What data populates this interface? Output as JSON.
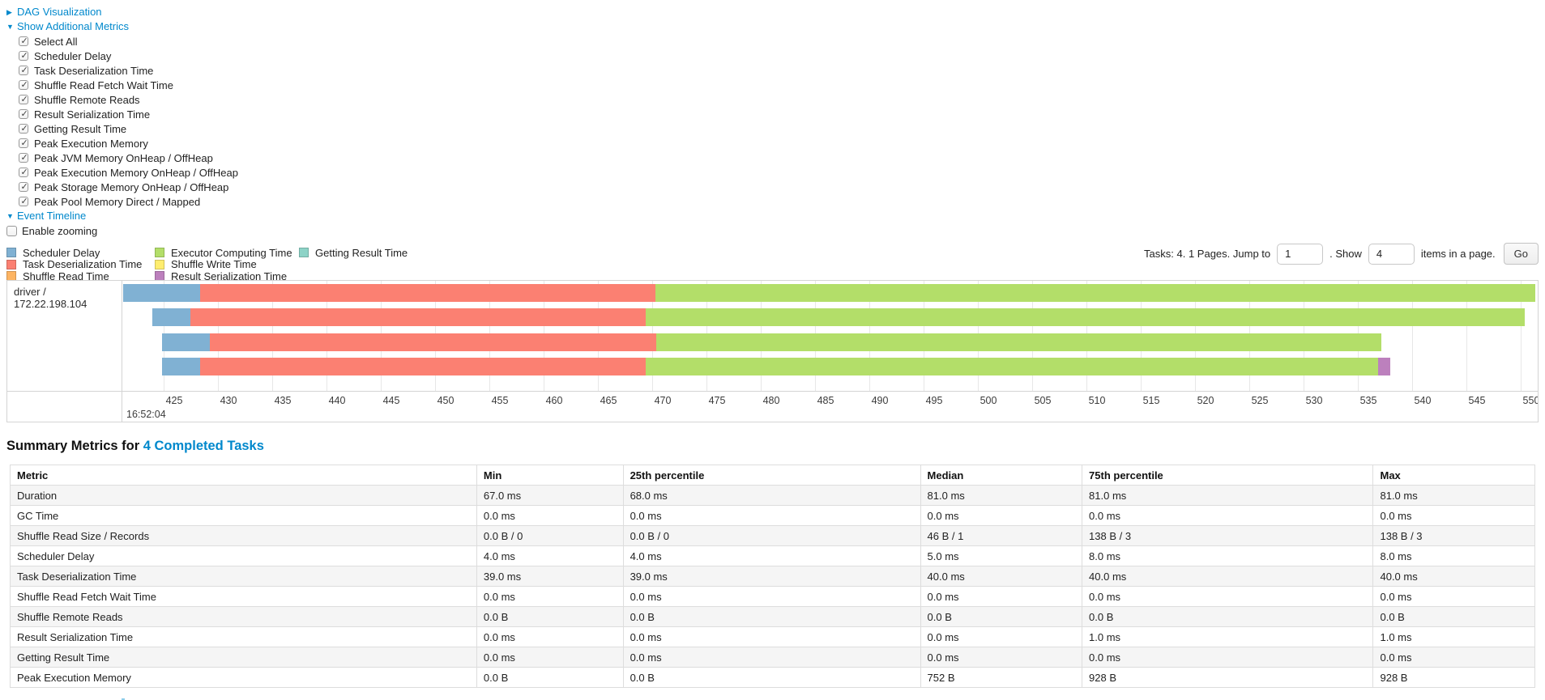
{
  "controls": {
    "dag": {
      "caret": "▶",
      "label": "DAG Visualization"
    },
    "metrics_panel": {
      "caret": "▼",
      "label": "Show Additional Metrics",
      "items": [
        "Select All",
        "Scheduler Delay",
        "Task Deserialization Time",
        "Shuffle Read Fetch Wait Time",
        "Shuffle Remote Reads",
        "Result Serialization Time",
        "Getting Result Time",
        "Peak Execution Memory",
        "Peak JVM Memory OnHeap / OffHeap",
        "Peak Execution Memory OnHeap / OffHeap",
        "Peak Storage Memory OnHeap / OffHeap",
        "Peak Pool Memory Direct / Mapped"
      ]
    },
    "event_timeline": {
      "caret": "▼",
      "label": "Event Timeline"
    },
    "enable_zooming_label": "Enable zooming"
  },
  "legend": {
    "colors": {
      "scheduler_delay": "#80B1D3",
      "task_deserialization": "#FB8072",
      "shuffle_read": "#FDB462",
      "executor_computing": "#B3DE69",
      "shuffle_write": "#FFED6F",
      "result_serialization": "#BC80BD",
      "getting_result": "#8DD3C7"
    },
    "columns": [
      [
        {
          "key": "scheduler_delay",
          "label": "Scheduler Delay"
        },
        {
          "key": "task_deserialization",
          "label": "Task Deserialization Time"
        },
        {
          "key": "shuffle_read",
          "label": "Shuffle Read Time"
        }
      ],
      [
        {
          "key": "executor_computing",
          "label": "Executor Computing Time"
        },
        {
          "key": "shuffle_write",
          "label": "Shuffle Write Time"
        },
        {
          "key": "result_serialization",
          "label": "Result Serialization Time"
        }
      ],
      [
        {
          "key": "getting_result",
          "label": "Getting Result Time"
        }
      ]
    ]
  },
  "pagination": {
    "summary": "Tasks: 4. 1 Pages. Jump to",
    "jump_value": "1",
    "mid": ". Show",
    "show_value": "4",
    "suffix": "items in a page.",
    "go_label": "Go"
  },
  "timeline": {
    "executor_label": "driver / 172.22.198.104",
    "axis": {
      "min": 421.3,
      "max": 551.6,
      "tick_step": 5,
      "ticks": [
        425,
        430,
        435,
        440,
        445,
        450,
        455,
        460,
        465,
        470,
        475,
        480,
        485,
        490,
        495,
        500,
        505,
        510,
        515,
        520,
        525,
        530,
        535,
        540,
        545,
        550
      ],
      "start_time_label": "16:52:04"
    },
    "tasks": [
      {
        "segments": [
          {
            "type": "scheduler_delay",
            "start": 421.3,
            "end": 428.4
          },
          {
            "type": "task_deserialization",
            "start": 428.4,
            "end": 470.3
          },
          {
            "type": "executor_computing",
            "start": 470.3,
            "end": 551.4
          }
        ]
      },
      {
        "segments": [
          {
            "type": "scheduler_delay",
            "start": 424.0,
            "end": 427.5
          },
          {
            "type": "task_deserialization",
            "start": 427.5,
            "end": 469.4
          },
          {
            "type": "executor_computing",
            "start": 469.4,
            "end": 550.4
          }
        ]
      },
      {
        "segments": [
          {
            "type": "scheduler_delay",
            "start": 424.9,
            "end": 429.3
          },
          {
            "type": "task_deserialization",
            "start": 429.3,
            "end": 470.4
          },
          {
            "type": "executor_computing",
            "start": 470.4,
            "end": 537.2
          }
        ]
      },
      {
        "segments": [
          {
            "type": "scheduler_delay",
            "start": 424.9,
            "end": 428.4
          },
          {
            "type": "task_deserialization",
            "start": 428.4,
            "end": 469.4
          },
          {
            "type": "executor_computing",
            "start": 469.4,
            "end": 536.9
          },
          {
            "type": "result_serialization",
            "start": 536.9,
            "end": 538.0
          }
        ]
      }
    ]
  },
  "summary": {
    "heading_prefix": "Summary Metrics for ",
    "heading_link": "4 Completed Tasks",
    "table": {
      "columns": [
        "Metric",
        "Min",
        "25th percentile",
        "Median",
        "75th percentile",
        "Max"
      ],
      "col_widths_pct": [
        30.6,
        9.6,
        19.5,
        10.6,
        19.1,
        10.6
      ],
      "rows": [
        [
          "Duration",
          "67.0 ms",
          "68.0 ms",
          "81.0 ms",
          "81.0 ms",
          "81.0 ms"
        ],
        [
          "GC Time",
          "0.0 ms",
          "0.0 ms",
          "0.0 ms",
          "0.0 ms",
          "0.0 ms"
        ],
        [
          "Shuffle Read Size / Records",
          "0.0 B / 0",
          "0.0 B / 0",
          "46 B / 1",
          "138 B / 3",
          "138 B / 3"
        ],
        [
          "Scheduler Delay",
          "4.0 ms",
          "4.0 ms",
          "5.0 ms",
          "8.0 ms",
          "8.0 ms"
        ],
        [
          "Task Deserialization Time",
          "39.0 ms",
          "39.0 ms",
          "40.0 ms",
          "40.0 ms",
          "40.0 ms"
        ],
        [
          "Shuffle Read Fetch Wait Time",
          "0.0 ms",
          "0.0 ms",
          "0.0 ms",
          "0.0 ms",
          "0.0 ms"
        ],
        [
          "Shuffle Remote Reads",
          "0.0 B",
          "0.0 B",
          "0.0 B",
          "0.0 B",
          "0.0 B"
        ],
        [
          "Result Serialization Time",
          "0.0 ms",
          "0.0 ms",
          "0.0 ms",
          "1.0 ms",
          "1.0 ms"
        ],
        [
          "Getting Result Time",
          "0.0 ms",
          "0.0 ms",
          "0.0 ms",
          "0.0 ms",
          "0.0 ms"
        ],
        [
          "Peak Execution Memory",
          "0.0 B",
          "0.0 B",
          "752 B",
          "928 B",
          "928 B"
        ]
      ]
    }
  }
}
